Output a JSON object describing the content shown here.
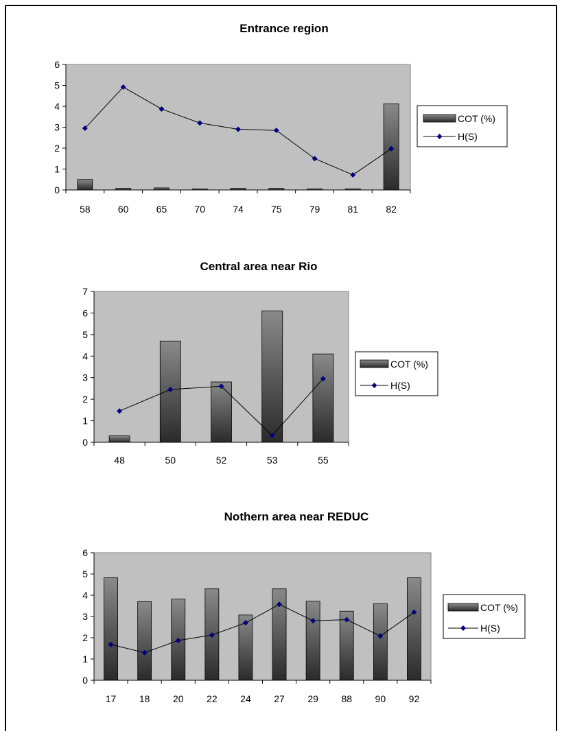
{
  "chart_data": [
    {
      "type": "bar",
      "title": "Entrance region",
      "categories": [
        "58",
        "60",
        "65",
        "70",
        "74",
        "75",
        "79",
        "81",
        "82"
      ],
      "series": [
        {
          "name": "COT (%)",
          "type": "bar",
          "values": [
            0.5,
            0.08,
            0.1,
            0.05,
            0.08,
            0.08,
            0.05,
            0.05,
            4.12
          ]
        },
        {
          "name": "H(S)",
          "type": "line",
          "values": [
            2.95,
            4.92,
            3.87,
            3.2,
            2.9,
            2.85,
            1.5,
            0.72,
            1.97
          ]
        }
      ],
      "ylim": [
        0,
        6
      ],
      "yticks": [
        "0",
        "1",
        "2",
        "3",
        "4",
        "5",
        "6"
      ],
      "legend": "right"
    },
    {
      "type": "bar",
      "title": "Central area near Rio",
      "categories": [
        "48",
        "50",
        "52",
        "53",
        "55"
      ],
      "series": [
        {
          "name": "COT (%)",
          "type": "bar",
          "values": [
            0.3,
            4.7,
            2.8,
            6.1,
            4.1
          ]
        },
        {
          "name": "H(S)",
          "type": "line",
          "values": [
            1.45,
            2.45,
            2.6,
            0.32,
            2.95
          ]
        }
      ],
      "ylim": [
        0,
        7
      ],
      "yticks": [
        "0",
        "1",
        "2",
        "3",
        "4",
        "5",
        "6",
        "7"
      ],
      "legend": "right"
    },
    {
      "type": "bar",
      "title": "Nothern area near REDUC",
      "categories": [
        "17",
        "18",
        "20",
        "22",
        "24",
        "27",
        "29",
        "88",
        "90",
        "92"
      ],
      "series": [
        {
          "name": "COT (%)",
          "type": "bar",
          "values": [
            4.82,
            3.7,
            3.82,
            4.3,
            3.07,
            4.3,
            3.72,
            3.25,
            3.6,
            4.82
          ]
        },
        {
          "name": "H(S)",
          "type": "line",
          "values": [
            1.68,
            1.3,
            1.87,
            2.13,
            2.7,
            3.57,
            2.8,
            2.85,
            2.08,
            3.2
          ]
        }
      ],
      "ylim": [
        0,
        6
      ],
      "yticks": [
        "0",
        "1",
        "2",
        "3",
        "4",
        "5",
        "6"
      ],
      "legend": "right"
    }
  ],
  "colors": {
    "plot_bg": "#c0c0c0",
    "bar_dark": "#2a2a2a",
    "bar_light": "#8a8a8a",
    "line": "#000000",
    "marker": "#000080"
  }
}
